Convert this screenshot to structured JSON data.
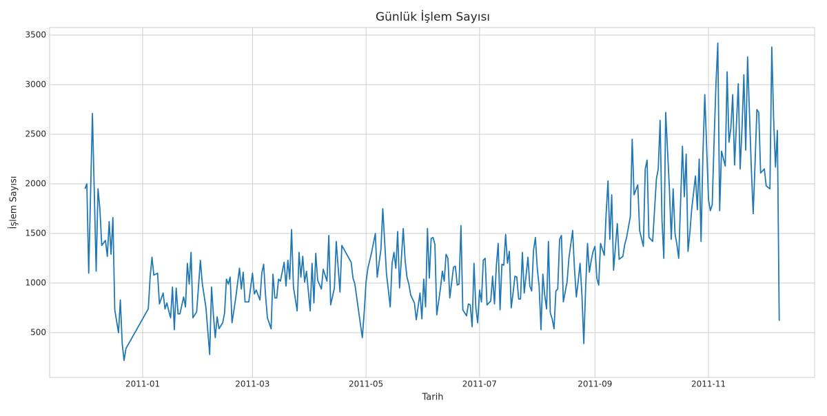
{
  "chart_data": {
    "type": "line",
    "title": "Günlük İşlem Sayısı",
    "x_label": "Tarih",
    "y_label": "İşlem Sayısı",
    "color": "#1f77b4",
    "grid": true,
    "xlim": [
      -50,
      361
    ],
    "ylim": [
      49,
      3576
    ],
    "xticks": [
      {
        "value": 0,
        "label": "2011-01"
      },
      {
        "value": 59,
        "label": "2011-03"
      },
      {
        "value": 120,
        "label": "2011-05"
      },
      {
        "value": 181,
        "label": "2011-07"
      },
      {
        "value": 243,
        "label": "2011-09"
      },
      {
        "value": 304,
        "label": "2011-11"
      }
    ],
    "yticks": [
      500,
      1000,
      1500,
      2000,
      2500,
      3000,
      3500
    ],
    "x": [
      -31,
      -30,
      -29,
      -27,
      -25,
      -24,
      -23,
      -22,
      -20,
      -19,
      -18,
      -17,
      -16,
      -15,
      -13,
      -12,
      -11,
      -10,
      -9,
      3,
      4,
      5,
      6,
      8,
      9,
      11,
      12,
      13,
      14,
      15,
      16,
      17,
      18,
      19,
      20,
      22,
      23,
      24,
      25,
      26,
      27,
      29,
      31,
      32,
      34,
      36,
      37,
      38,
      39,
      40,
      41,
      43,
      44,
      45,
      46,
      47,
      48,
      50,
      52,
      53,
      54,
      55,
      57,
      59,
      60,
      61,
      63,
      64,
      65,
      66,
      67,
      69,
      70,
      71,
      72,
      73,
      74,
      76,
      77,
      78,
      79,
      80,
      81,
      83,
      84,
      85,
      86,
      87,
      88,
      90,
      91,
      92,
      93,
      94,
      96,
      97,
      99,
      100,
      101,
      103,
      104,
      106,
      107,
      112,
      113,
      114,
      116,
      118,
      119,
      120,
      121,
      123,
      125,
      126,
      128,
      129,
      131,
      132,
      133,
      134,
      135,
      136,
      137,
      138,
      140,
      141,
      142,
      143,
      144,
      146,
      147,
      149,
      150,
      151,
      152,
      153,
      154,
      155,
      156,
      157,
      158,
      160,
      161,
      162,
      163,
      164,
      165,
      167,
      168,
      169,
      170,
      171,
      172,
      174,
      175,
      176,
      177,
      178,
      179,
      180,
      181,
      182,
      183,
      184,
      185,
      187,
      188,
      189,
      190,
      191,
      192,
      193,
      194,
      195,
      196,
      197,
      198,
      199,
      200,
      201,
      202,
      203,
      204,
      205,
      206,
      207,
      208,
      209,
      210,
      211,
      212,
      213,
      214,
      215,
      216,
      217,
      218,
      219,
      220,
      221,
      222,
      223,
      224,
      225,
      226,
      228,
      229,
      230,
      231,
      232,
      233,
      234,
      235,
      236,
      237,
      238,
      239,
      240,
      241,
      242,
      243,
      244,
      245,
      246,
      248,
      249,
      250,
      251,
      252,
      253,
      255,
      256,
      258,
      259,
      260,
      262,
      263,
      264,
      265,
      266,
      267,
      269,
      270,
      271,
      272,
      274,
      276,
      277,
      278,
      279,
      280,
      281,
      283,
      284,
      285,
      286,
      287,
      288,
      290,
      291,
      292,
      293,
      294,
      295,
      297,
      298,
      299,
      300,
      301,
      302,
      304,
      305,
      306,
      307,
      308,
      309,
      310,
      311,
      313,
      314,
      315,
      316,
      317,
      318,
      320,
      321,
      322,
      323,
      324,
      325,
      327,
      328,
      329,
      330,
      331,
      332,
      334,
      335,
      337,
      338,
      339,
      340,
      341,
      342
    ],
    "values": [
      1950,
      2000,
      1100,
      2710,
      1120,
      1950,
      1750,
      1380,
      1430,
      1270,
      1620,
      1290,
      1660,
      730,
      500,
      830,
      390,
      220,
      340,
      740,
      1060,
      1260,
      1080,
      1100,
      790,
      900,
      740,
      800,
      720,
      650,
      960,
      530,
      950,
      690,
      690,
      860,
      760,
      1200,
      990,
      1310,
      650,
      710,
      1230,
      1000,
      750,
      280,
      960,
      680,
      450,
      660,
      540,
      600,
      700,
      1040,
      990,
      1060,
      600,
      850,
      1150,
      940,
      1110,
      810,
      810,
      1100,
      890,
      930,
      830,
      1100,
      1190,
      880,
      650,
      540,
      1090,
      850,
      850,
      1040,
      1020,
      1210,
      970,
      1230,
      1040,
      1540,
      960,
      720,
      1310,
      1060,
      1270,
      1010,
      1120,
      720,
      1200,
      800,
      1300,
      1030,
      940,
      1140,
      1020,
      1480,
      780,
      950,
      1420,
      910,
      1380,
      1210,
      1050,
      990,
      720,
      450,
      700,
      1010,
      1150,
      1310,
      1500,
      1060,
      1340,
      1750,
      1090,
      930,
      760,
      1200,
      1310,
      1150,
      1520,
      950,
      1550,
      1230,
      1060,
      990,
      880,
      800,
      630,
      900,
      640,
      1040,
      760,
      1550,
      1050,
      1450,
      1460,
      1390,
      680,
      950,
      1120,
      1020,
      1290,
      1250,
      850,
      1160,
      1170,
      980,
      990,
      1580,
      730,
      670,
      790,
      780,
      560,
      1200,
      750,
      600,
      930,
      810,
      1230,
      1250,
      780,
      820,
      1070,
      790,
      1170,
      1400,
      730,
      1190,
      1180,
      1490,
      1200,
      1320,
      750,
      900,
      1070,
      1060,
      840,
      840,
      1310,
      900,
      1080,
      1260,
      970,
      920,
      1330,
      1460,
      1150,
      970,
      530,
      1090,
      880,
      740,
      1420,
      700,
      640,
      540,
      920,
      940,
      1440,
      1480,
      810,
      1010,
      1250,
      1390,
      1530,
      1140,
      860,
      1020,
      1200,
      880,
      390,
      960,
      1400,
      1110,
      1230,
      1320,
      1370,
      1050,
      980,
      1400,
      1280,
      1700,
      2030,
      1440,
      1890,
      1130,
      1600,
      1240,
      1270,
      1390,
      1460,
      1670,
      2450,
      1890,
      1940,
      1990,
      1530,
      1370,
      2150,
      2240,
      1460,
      1420,
      2050,
      2150,
      2640,
      1640,
      1250,
      2720,
      1950,
      1440,
      1950,
      1500,
      1390,
      1250,
      2380,
      1870,
      2300,
      1320,
      1510,
      1750,
      2080,
      1740,
      2250,
      1420,
      2300,
      2900,
      1840,
      1730,
      1790,
      2430,
      3000,
      3420,
      1730,
      2330,
      2180,
      3130,
      2420,
      2560,
      2900,
      2190,
      3010,
      2150,
      2560,
      3100,
      2340,
      3280,
      2160,
      1700,
      2200,
      2750,
      2720,
      2110,
      2150,
      1980,
      1950,
      3380,
      2650,
      2170,
      2540,
      620
    ]
  }
}
